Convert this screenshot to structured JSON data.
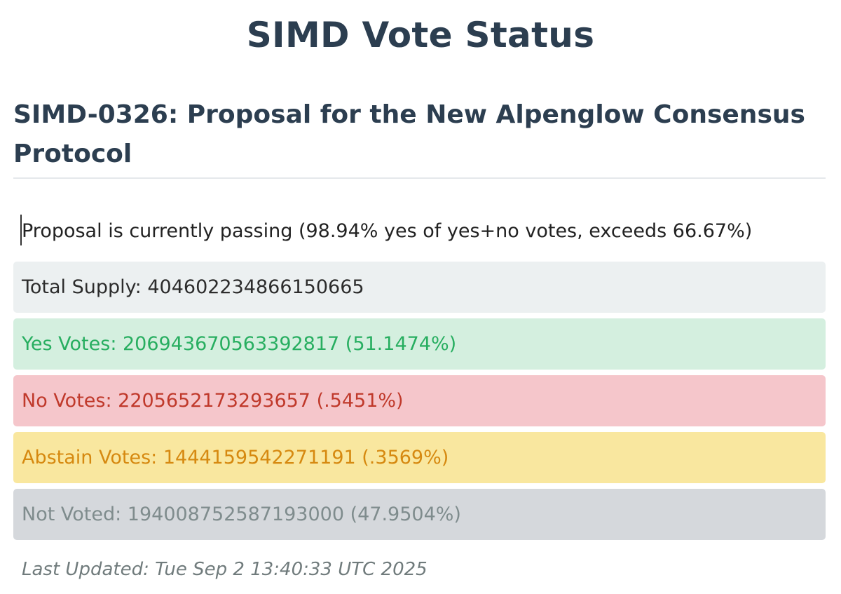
{
  "header": {
    "title": "SIMD Vote Status"
  },
  "proposal": {
    "title": "SIMD-0326: Proposal for the New Alpenglow Consensus Protocol",
    "status_text": "Proposal is currently passing (98.94% yes of yes+no votes, exceeds 66.67%)"
  },
  "stats": {
    "total": {
      "text": "Total Supply: 404602234866150665",
      "bg": "#ecf0f1",
      "color": "#2c2c2c"
    },
    "yes": {
      "text": "Yes Votes: 206943670563392817 (51.1474%)",
      "bg": "#d4efdf",
      "color": "#27ae60"
    },
    "no": {
      "text": "No Votes: 2205652173293657 (.5451%)",
      "bg": "#f5c6cb",
      "color": "#c0392b"
    },
    "abstain": {
      "text": "Abstain Votes: 1444159542271191 (.3569%)",
      "bg": "#f9e79f",
      "color": "#d68910"
    },
    "not_voted": {
      "text": "Not Voted: 194008752587193000 (47.9504%)",
      "bg": "#d5d8dc",
      "color": "#7f8c8d"
    }
  },
  "footer": {
    "last_updated": "Last Updated: Tue Sep 2 13:40:33 UTC 2025"
  }
}
